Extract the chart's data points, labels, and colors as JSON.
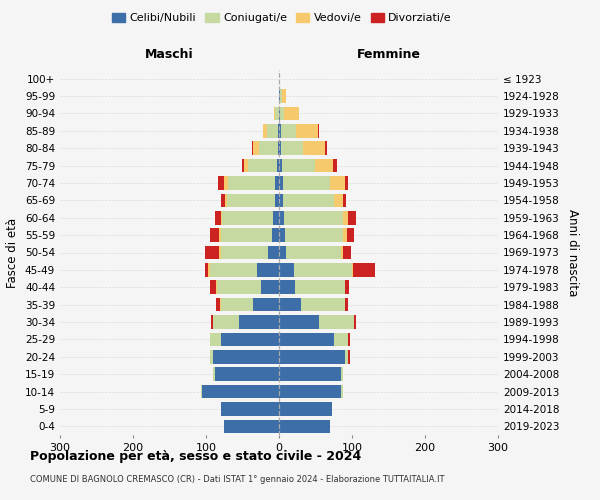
{
  "age_groups": [
    "0-4",
    "5-9",
    "10-14",
    "15-19",
    "20-24",
    "25-29",
    "30-34",
    "35-39",
    "40-44",
    "45-49",
    "50-54",
    "55-59",
    "60-64",
    "65-69",
    "70-74",
    "75-79",
    "80-84",
    "85-89",
    "90-94",
    "95-99",
    "100+"
  ],
  "birth_years": [
    "2019-2023",
    "2014-2018",
    "2009-2013",
    "2004-2008",
    "1999-2003",
    "1994-1998",
    "1989-1993",
    "1984-1988",
    "1979-1983",
    "1974-1978",
    "1969-1973",
    "1964-1968",
    "1959-1963",
    "1954-1958",
    "1949-1953",
    "1944-1948",
    "1939-1943",
    "1934-1938",
    "1929-1933",
    "1924-1928",
    "≤ 1923"
  ],
  "males": {
    "celibi": [
      75,
      80,
      105,
      88,
      90,
      80,
      55,
      35,
      25,
      30,
      15,
      10,
      8,
      6,
      5,
      3,
      2,
      2,
      0,
      0,
      0
    ],
    "coniugati": [
      0,
      0,
      2,
      2,
      5,
      15,
      35,
      45,
      60,
      65,
      65,
      70,
      70,
      65,
      65,
      40,
      25,
      15,
      5,
      0,
      0
    ],
    "vedovi": [
      0,
      0,
      0,
      0,
      0,
      0,
      0,
      1,
      1,
      2,
      2,
      2,
      2,
      3,
      5,
      5,
      8,
      5,
      2,
      0,
      0
    ],
    "divorziati": [
      0,
      0,
      0,
      0,
      0,
      0,
      3,
      5,
      8,
      5,
      20,
      12,
      8,
      5,
      8,
      2,
      2,
      0,
      0,
      0,
      0
    ]
  },
  "females": {
    "nubili": [
      70,
      72,
      85,
      85,
      90,
      75,
      55,
      30,
      22,
      20,
      10,
      8,
      7,
      5,
      5,
      4,
      3,
      3,
      2,
      2,
      0
    ],
    "coniugate": [
      0,
      0,
      2,
      2,
      5,
      20,
      48,
      60,
      68,
      80,
      75,
      80,
      80,
      70,
      65,
      45,
      30,
      20,
      5,
      2,
      0
    ],
    "vedove": [
      0,
      0,
      0,
      0,
      0,
      0,
      0,
      0,
      1,
      2,
      2,
      5,
      8,
      12,
      20,
      25,
      30,
      30,
      20,
      5,
      0
    ],
    "divorziate": [
      0,
      0,
      0,
      0,
      2,
      2,
      3,
      5,
      5,
      30,
      12,
      10,
      10,
      5,
      5,
      5,
      3,
      2,
      0,
      0,
      0
    ]
  },
  "colors": {
    "celibi": "#3d6ea8",
    "coniugati": "#c5d9a0",
    "vedovi": "#f5c96c",
    "divorziati": "#cc2222"
  },
  "xlim": 300,
  "title": "Popolazione per età, sesso e stato civile - 2024",
  "subtitle": "COMUNE DI BAGNOLO CREMASCO (CR) - Dati ISTAT 1° gennaio 2024 - Elaborazione TUTTAITALIA.IT",
  "ylabel_left": "Fasce di età",
  "ylabel_right": "Anni di nascita",
  "xlabel_left": "Maschi",
  "xlabel_right": "Femmine",
  "bg_color": "#f5f5f5",
  "legend_labels": [
    "Celibi/Nubili",
    "Coniugati/e",
    "Vedovi/e",
    "Divorziati/e"
  ]
}
